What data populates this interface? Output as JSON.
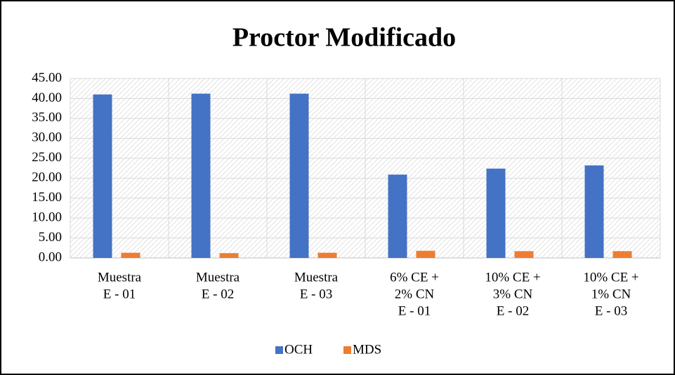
{
  "chart_data": {
    "type": "bar",
    "title": "Proctor Modificado",
    "categories": [
      [
        "Muestra",
        "E - 01"
      ],
      [
        "Muestra",
        "E - 02"
      ],
      [
        "Muestra",
        "E - 03"
      ],
      [
        "6% CE +",
        "2% CN",
        "E - 01"
      ],
      [
        "10% CE +",
        "3% CN",
        "E - 02"
      ],
      [
        "10% CE +",
        "1% CN",
        "E - 03"
      ]
    ],
    "series": [
      {
        "name": "OCH",
        "color": "#4472c4",
        "values": [
          41.0,
          41.2,
          41.2,
          20.9,
          22.4,
          23.2
        ]
      },
      {
        "name": "MDS",
        "color": "#ed7d31",
        "values": [
          1.3,
          1.2,
          1.3,
          1.8,
          1.7,
          1.7
        ]
      }
    ],
    "ylim": [
      0,
      45
    ],
    "yticks": [
      {
        "value": 0,
        "label": "0.00"
      },
      {
        "value": 5,
        "label": "5.00"
      },
      {
        "value": 10,
        "label": "10.00"
      },
      {
        "value": 15,
        "label": "15.00"
      },
      {
        "value": 20,
        "label": "20.00"
      },
      {
        "value": 25,
        "label": "25.00"
      },
      {
        "value": 30,
        "label": "30.00"
      },
      {
        "value": 35,
        "label": "35.00"
      },
      {
        "value": 40,
        "label": "40.00"
      },
      {
        "value": 45,
        "label": "45.00"
      }
    ],
    "grid": true,
    "legend": "bottom"
  }
}
